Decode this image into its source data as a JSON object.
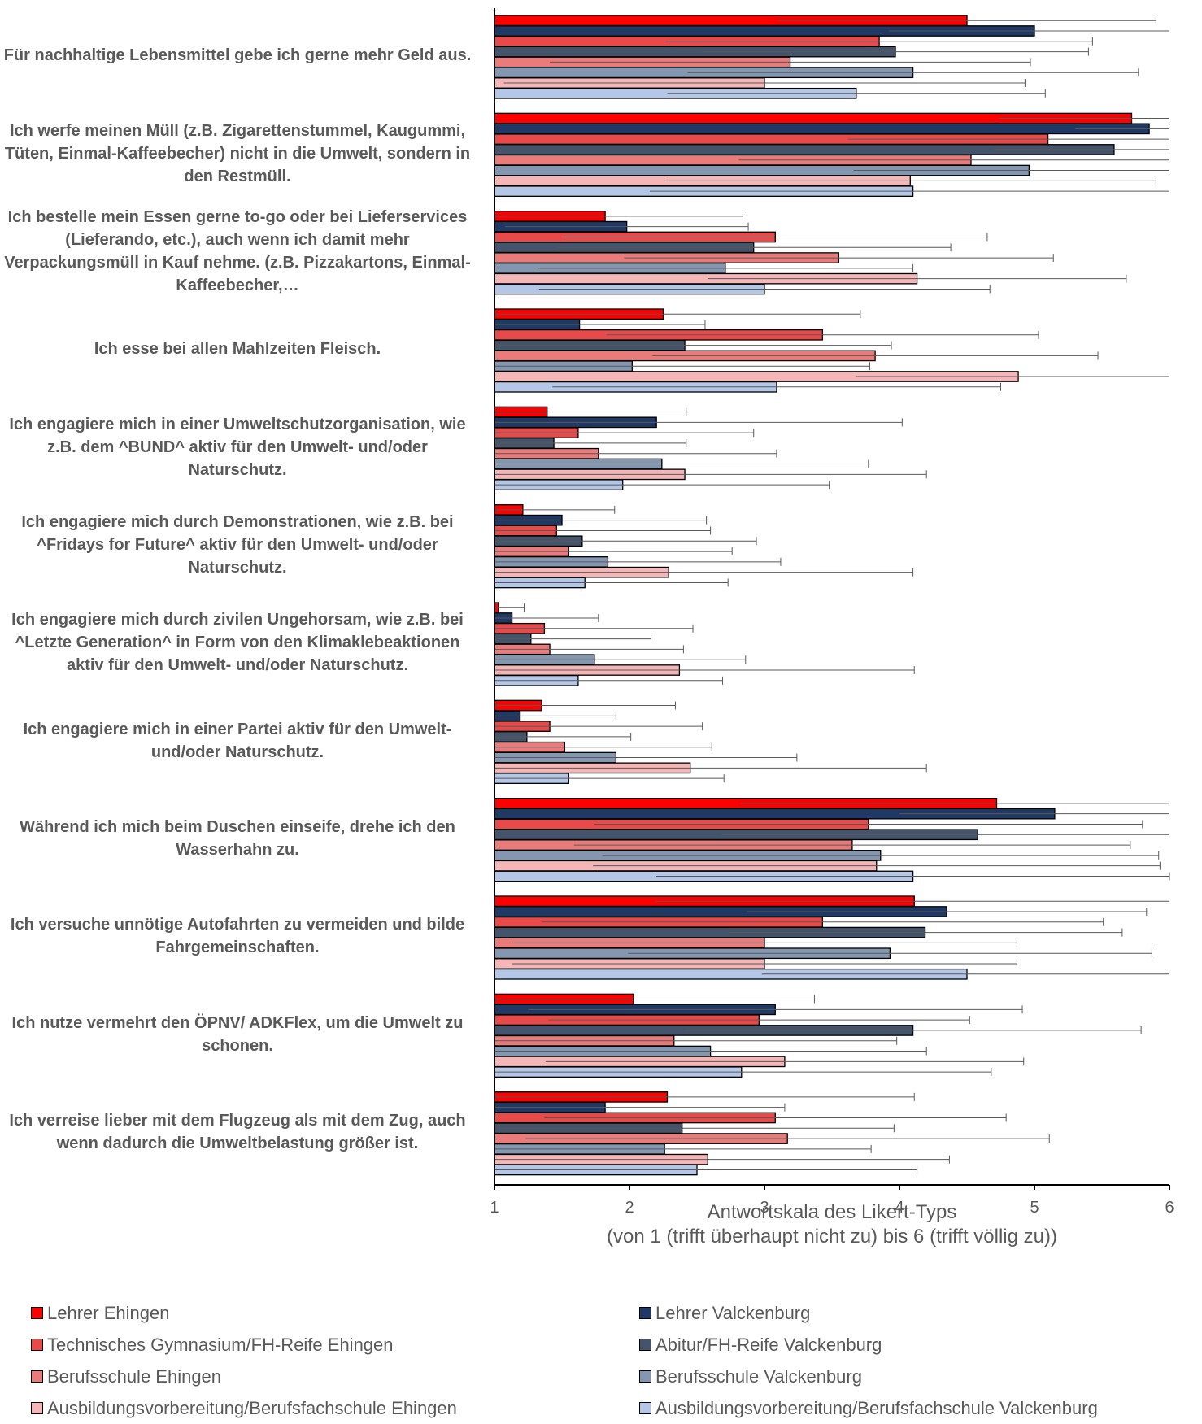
{
  "chart_data": {
    "type": "bar",
    "orientation": "horizontal",
    "categories": [
      "Für nachhaltige Lebensmittel gebe ich gerne mehr Geld aus.",
      "Ich werfe meinen Müll (z.B. Zigarettenstummel, Kaugummi, Tüten, Einmal-Kaffeebecher) nicht in die Umwelt, sondern in den Restmüll.",
      "Ich bestelle mein Essen gerne to-go oder bei Lieferservices (Lieferando, etc.), auch wenn ich damit mehr Verpackungsmüll in Kauf nehme. (z.B. Pizzakartons, Einmal-Kaffeebecher,…",
      "Ich esse bei allen Mahlzeiten Fleisch.",
      "Ich engagiere mich in einer Umweltschutzorganisation, wie z.B. dem ^BUND^ aktiv für den Umwelt- und/oder Naturschutz.",
      "Ich engagiere mich durch Demonstrationen, wie z.B. bei ^Fridays for Future^ aktiv für den Umwelt- und/oder Naturschutz.",
      "Ich engagiere mich durch zivilen Ungehorsam, wie z.B. bei ^Letzte Generation^ in Form von den Klimaklebeaktionen aktiv für den Umwelt- und/oder Naturschutz.",
      "Ich engagiere mich in einer Partei aktiv für den Umwelt- und/oder Naturschutz.",
      "Während ich mich beim Duschen einseife, drehe ich den Wasserhahn zu.",
      "Ich versuche unnötige Autofahrten zu vermeiden und bilde Fahrgemeinschaften.",
      "Ich nutze vermehrt den ÖPNV/ ADKFlex, um die Umwelt zu schonen.",
      "Ich verreise lieber mit dem Flugzeug als mit dem Zug, auch wenn dadurch die Umweltbelastung größer ist."
    ],
    "series": [
      {
        "name": "Lehrer Ehingen",
        "color": "#ff0000",
        "values": [
          4.5,
          5.72,
          1.82,
          2.25,
          1.39,
          1.21,
          1.03,
          1.35,
          4.72,
          4.11,
          2.03,
          2.28
        ],
        "errors": [
          1.4,
          0.98,
          1.02,
          1.46,
          1.03,
          0.68,
          0.19,
          0.99,
          1.9,
          1.92,
          1.34,
          1.83
        ]
      },
      {
        "name": "Lehrer Valckenburg",
        "color": "#203864",
        "values": [
          5.0,
          5.85,
          1.98,
          1.63,
          2.2,
          1.5,
          1.13,
          1.19,
          5.15,
          4.35,
          3.08,
          1.82
        ],
        "errors": [
          1.08,
          0.55,
          0.9,
          0.93,
          1.82,
          1.07,
          0.64,
          0.71,
          1.15,
          1.48,
          1.83,
          1.33
        ]
      },
      {
        "name": "Technisches Gymnasium/FH-Reife Ehingen",
        "color": "#e84a4a",
        "values": [
          3.85,
          5.1,
          3.08,
          3.43,
          1.62,
          1.46,
          1.37,
          1.41,
          3.77,
          3.43,
          2.96,
          3.08
        ],
        "errors": [
          1.58,
          1.48,
          1.57,
          1.6,
          1.3,
          1.14,
          1.1,
          1.13,
          2.03,
          2.08,
          1.56,
          1.71
        ]
      },
      {
        "name": "Abitur/FH-Reife Valckenburg",
        "color": "#44546a",
        "values": [
          3.97,
          5.59,
          2.92,
          2.41,
          1.44,
          1.65,
          1.27,
          1.24,
          4.58,
          4.19,
          4.1,
          2.39
        ],
        "errors": [
          1.43,
          0.89,
          1.46,
          1.53,
          0.98,
          1.29,
          0.89,
          0.77,
          1.9,
          1.46,
          1.69,
          1.57
        ]
      },
      {
        "name": "Berufsschule Ehingen",
        "color": "#ea7b7b",
        "values": [
          3.19,
          4.53,
          3.55,
          3.82,
          1.77,
          1.55,
          1.41,
          1.52,
          3.65,
          3.0,
          2.33,
          3.17
        ],
        "errors": [
          1.78,
          1.72,
          1.59,
          1.65,
          1.32,
          1.21,
          0.99,
          1.09,
          2.06,
          1.87,
          1.65,
          1.94
        ]
      },
      {
        "name": "Berufsschule Valckenburg",
        "color": "#8497b0",
        "values": [
          4.1,
          4.96,
          2.71,
          2.02,
          2.24,
          1.84,
          1.74,
          1.9,
          3.86,
          3.93,
          2.6,
          2.26
        ],
        "errors": [
          1.67,
          1.3,
          1.39,
          1.76,
          1.53,
          1.28,
          1.12,
          1.34,
          2.06,
          1.94,
          1.6,
          1.53
        ]
      },
      {
        "name": "Ausbildungsvorbereitung/Berufsfachschule Ehingen",
        "color": "#f4b6b6",
        "values": [
          3.0,
          4.08,
          4.13,
          4.88,
          2.41,
          2.29,
          2.37,
          2.45,
          3.83,
          3.0,
          3.15,
          2.58
        ],
        "errors": [
          1.93,
          1.82,
          1.55,
          1.2,
          1.79,
          1.81,
          1.74,
          1.75,
          2.1,
          1.87,
          1.77,
          1.79
        ]
      },
      {
        "name": "Ausbildungsvorbereitung/Berufsfachschule Valckenburg",
        "color": "#b4c7e7",
        "values": [
          3.68,
          4.1,
          3.0,
          3.09,
          1.95,
          1.67,
          1.62,
          1.55,
          4.1,
          4.5,
          2.83,
          2.5
        ],
        "errors": [
          1.4,
          1.95,
          1.67,
          1.66,
          1.53,
          1.06,
          1.07,
          1.15,
          1.9,
          1.52,
          1.85,
          1.63
        ]
      }
    ],
    "xlabel_line1": "Antwortskala des Likert-Typs",
    "xlabel_line2": "(von 1 (trifft überhaupt nicht zu) bis 6 (trifft völlig zu))",
    "xlim": [
      1,
      6
    ],
    "xticks": [
      "1",
      "2",
      "3",
      "4",
      "5",
      "6"
    ],
    "grid": false,
    "legend_position": "bottom",
    "error_bars": true
  }
}
